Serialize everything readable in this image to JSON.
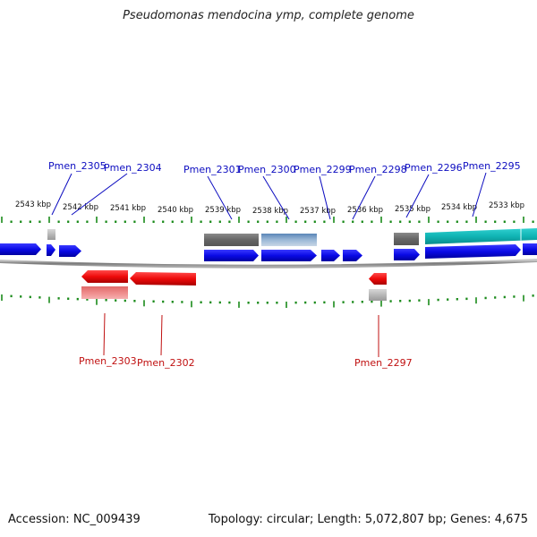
{
  "title": "Pseudomonas mendocina ymp, complete genome",
  "accession_text": "Accession: NC_009439",
  "topology_text": "Topology: circular; Length: 5,072,807 bp; Genes: 4,675",
  "colors": {
    "forward_gene": "#0a0ae6",
    "reverse_gene": "#ee0a0a",
    "tick": "#1a8a1a",
    "label_forward": "#0c0cc0",
    "label_reverse": "#c01010",
    "backbone": "#888888"
  },
  "kbp_labels": [
    "2543 kbp",
    "2542 kbp",
    "2541 kbp",
    "2540 kbp",
    "2539 kbp",
    "2538 kbp",
    "2537 kbp",
    "2536 kbp",
    "2535 kbp",
    "2534 kbp",
    "2533 kbp"
  ],
  "forward_gene_labels": [
    "Pmen_2305",
    "Pmen_2304",
    "Pmen_2301",
    "Pmen_2300",
    "Pmen_2299",
    "Pmen_2298",
    "Pmen_2296",
    "Pmen_2295"
  ],
  "reverse_gene_labels": [
    "Pmen_2303",
    "Pmen_2302",
    "Pmen_2297"
  ]
}
